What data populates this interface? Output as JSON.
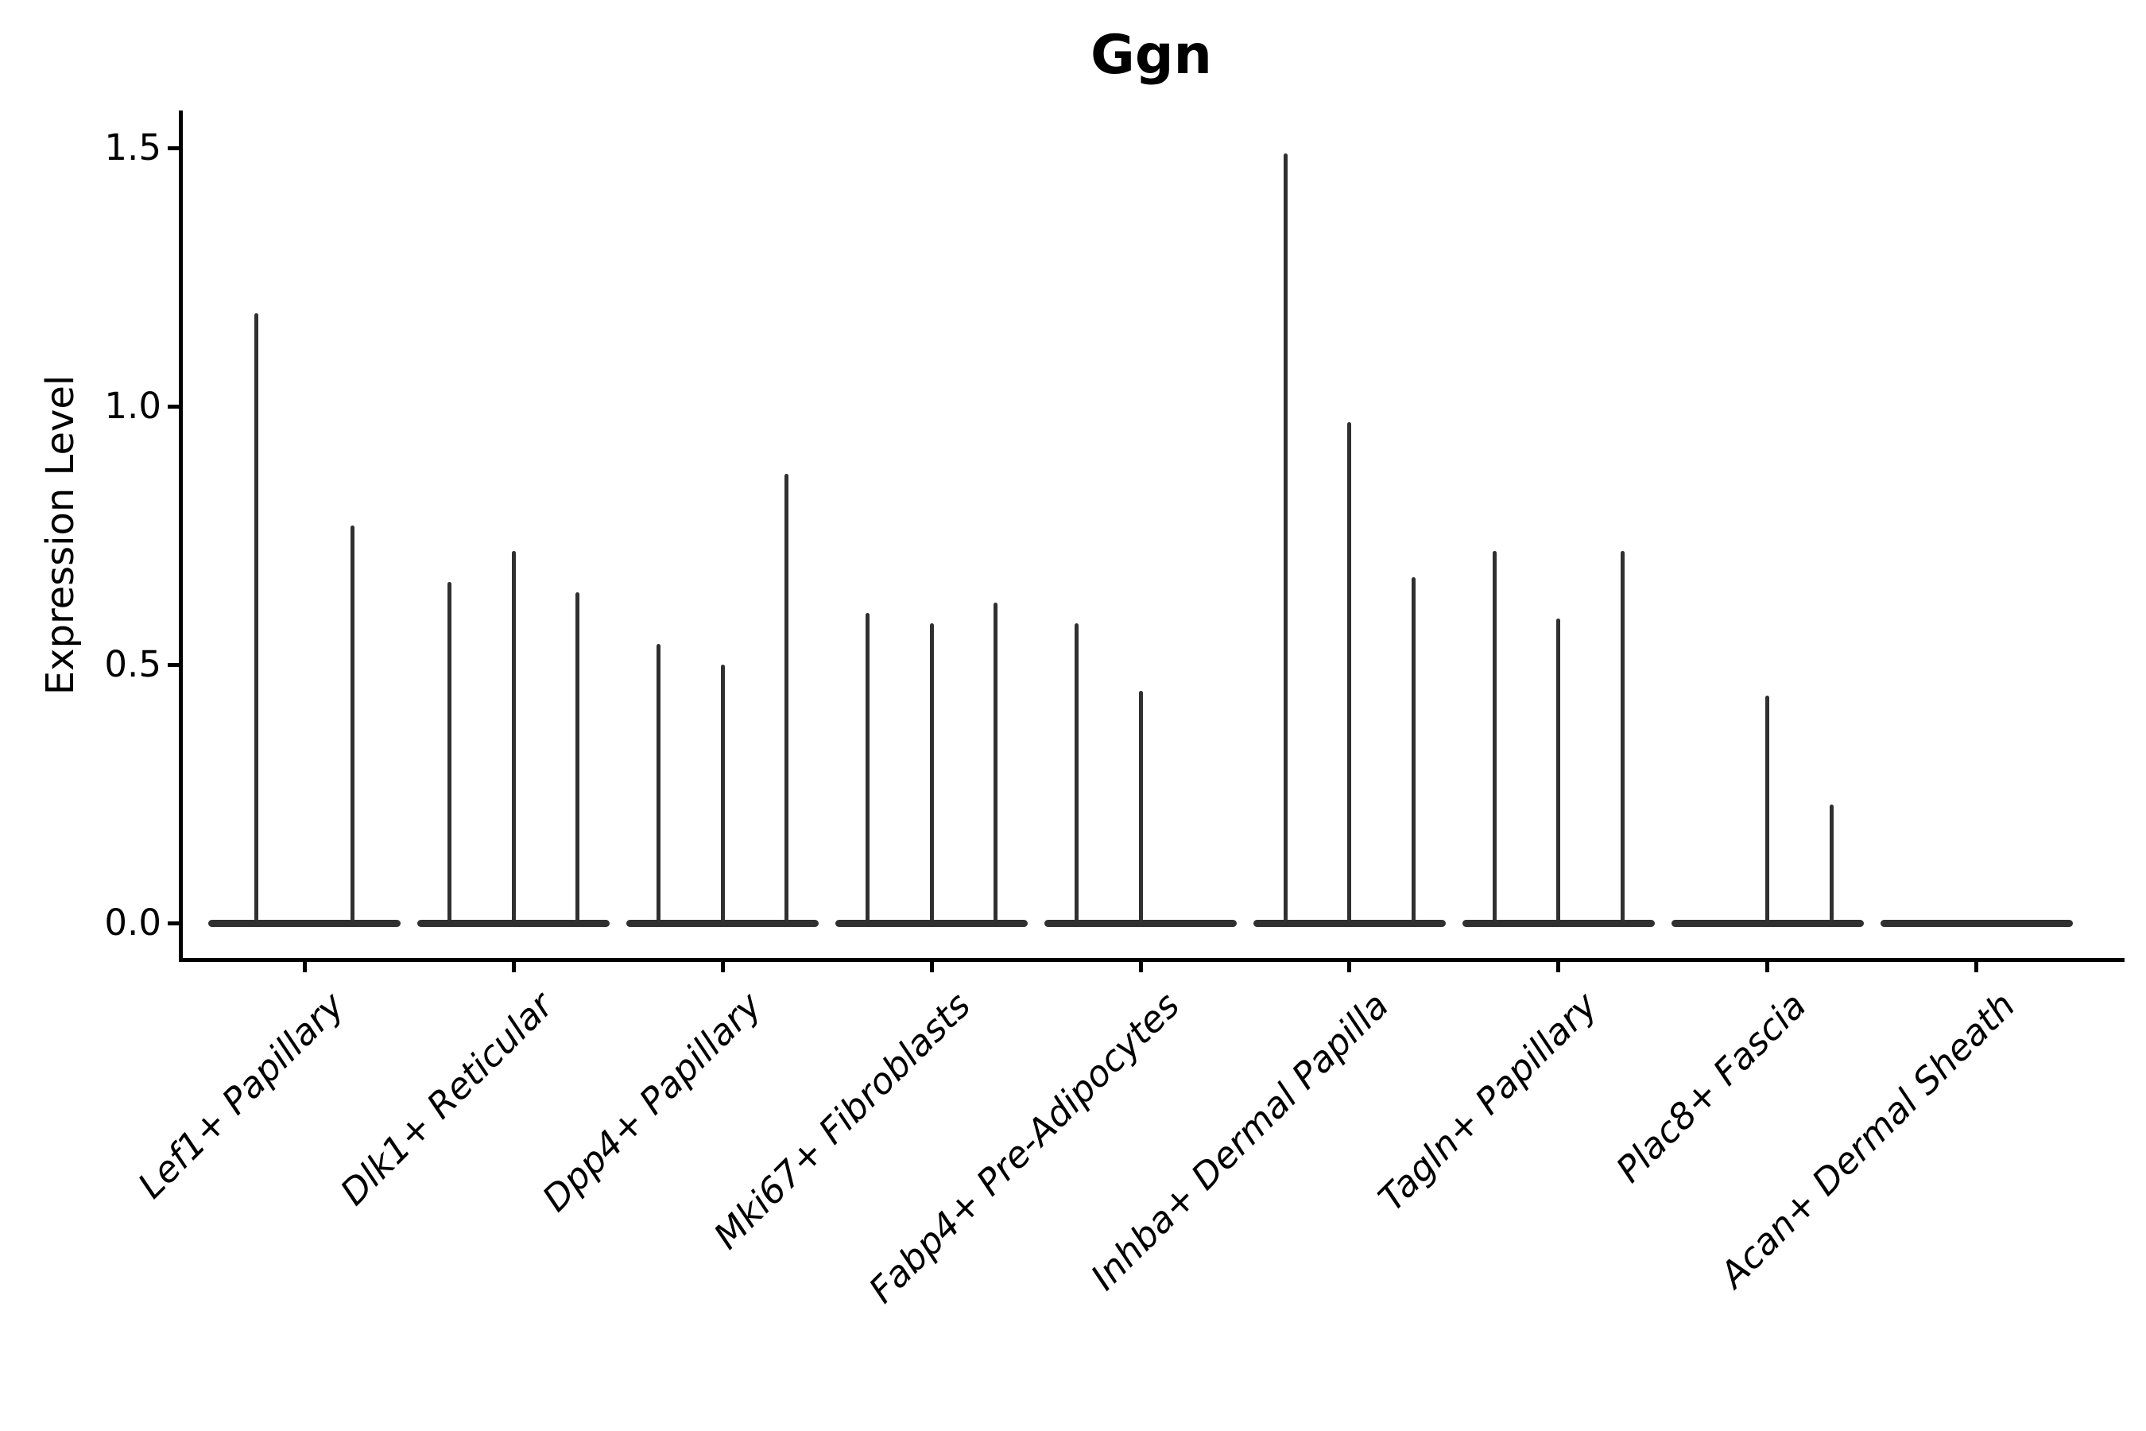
{
  "title": "Ggn",
  "y_axis": {
    "label": "Expression Level",
    "tick_labels": [
      "0.0",
      "0.5",
      "1.0",
      "1.5"
    ]
  },
  "x_axis": {
    "tick_labels": [
      "Lef1+ Papillary",
      "Dlk1+ Reticular",
      "Dpp4+ Papillary",
      "Mki67+ Fibroblasts",
      "Fabp4+ Pre-Adipocytes",
      "Inhba+ Dermal Papilla",
      "Tagln+ Papillary",
      "Plac8+ Fascia",
      "Acan+ Dermal Sheath"
    ]
  },
  "colors": {
    "violin": "#303030",
    "axis": "#000000",
    "text": "#000000"
  },
  "chart_data": {
    "type": "violin",
    "title": "Ggn",
    "xlabel": "",
    "ylabel": "Expression Level",
    "ylim": [
      0,
      1.55
    ],
    "yticks": [
      0,
      0.5,
      1.0,
      1.5
    ],
    "grid": false,
    "legend": false,
    "x_tick_rotation": 45,
    "categories": [
      "Lef1+ Papillary",
      "Dlk1+ Reticular",
      "Dpp4+ Papillary",
      "Mki67+ Fibroblasts",
      "Fabp4+ Pre-Adipocytes",
      "Inhba+ Dermal Papilla",
      "Tagln+ Papillary",
      "Plac8+ Fascia",
      "Acan+ Dermal Sheath"
    ],
    "violins": [
      {
        "category": "Lef1+ Papillary",
        "expression_maxima": [
          1.18,
          0.77
        ]
      },
      {
        "category": "Dlk1+ Reticular",
        "expression_maxima": [
          0.66,
          0.72,
          0.64
        ]
      },
      {
        "category": "Dpp4+ Papillary",
        "expression_maxima": [
          0.54,
          0.5,
          0.87
        ]
      },
      {
        "category": "Mki67+ Fibroblasts",
        "expression_maxima": [
          0.6,
          0.58,
          0.62
        ]
      },
      {
        "category": "Fabp4+ Pre-Adipocytes",
        "expression_maxima": [
          0.58,
          0.45,
          0
        ]
      },
      {
        "category": "Inhba+ Dermal Papilla",
        "expression_maxima": [
          1.49,
          0.97,
          0.67
        ]
      },
      {
        "category": "Tagln+ Papillary",
        "expression_maxima": [
          0.72,
          0.59,
          0.72
        ]
      },
      {
        "category": "Plac8+ Fascia",
        "expression_maxima": [
          0,
          0.44,
          0.23
        ]
      },
      {
        "category": "Acan+ Dermal Sheath",
        "expression_maxima": [
          0,
          0,
          0
        ]
      }
    ],
    "violin_style": "thin spike with flat base at zero; 0 means flat violin with no spike"
  }
}
